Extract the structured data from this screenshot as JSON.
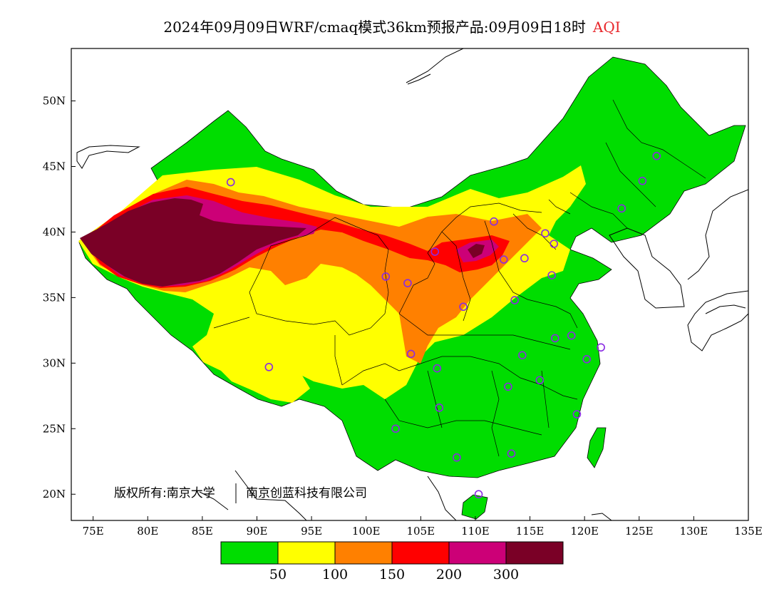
{
  "title": {
    "main": "2024年09月09日WRF/cmaq模式36km预报产品:09月09日18时",
    "product": "AQI",
    "product_color": "#e8262a"
  },
  "axes": {
    "lat_labels": [
      "20N",
      "25N",
      "30N",
      "35N",
      "40N",
      "45N",
      "50N"
    ],
    "lon_labels": [
      "75E",
      "80E",
      "85E",
      "90E",
      "95E",
      "100E",
      "105E",
      "110E",
      "115E",
      "120E",
      "125E",
      "130E",
      "135E"
    ],
    "lon_range": [
      73,
      135
    ],
    "lat_range": [
      18,
      54
    ]
  },
  "copyright": {
    "text_a": "版权所有:南京大学",
    "text_b": "南京创蓝科技有限公司"
  },
  "colorbar": {
    "colors": [
      "#00e400",
      "#ffff00",
      "#ff7e00",
      "#ff0000",
      "#99004c",
      "#7e0023"
    ],
    "bin_colors": [
      "#00dd00",
      "#ffff00",
      "#ff8000",
      "#ff0000",
      "#cc0077",
      "#7a0026"
    ],
    "thresholds": [
      "50",
      "100",
      "150",
      "200",
      "300"
    ]
  },
  "station_color": "#8a2be2",
  "stations": [
    [
      87.6,
      43.8
    ],
    [
      126.6,
      45.8
    ],
    [
      125.3,
      43.9
    ],
    [
      123.4,
      41.8
    ],
    [
      111.7,
      40.8
    ],
    [
      116.4,
      39.9
    ],
    [
      117.2,
      39.1
    ],
    [
      106.3,
      38.5
    ],
    [
      112.6,
      37.9
    ],
    [
      114.5,
      38.0
    ],
    [
      117.0,
      36.7
    ],
    [
      101.8,
      36.6
    ],
    [
      103.8,
      36.1
    ],
    [
      113.6,
      34.8
    ],
    [
      108.9,
      34.3
    ],
    [
      104.1,
      30.7
    ],
    [
      106.5,
      29.6
    ],
    [
      114.3,
      30.6
    ],
    [
      117.3,
      31.9
    ],
    [
      118.8,
      32.1
    ],
    [
      120.2,
      30.3
    ],
    [
      121.5,
      31.2
    ],
    [
      113.0,
      28.2
    ],
    [
      115.9,
      28.7
    ],
    [
      119.3,
      26.1
    ],
    [
      106.7,
      26.6
    ],
    [
      102.7,
      25.0
    ],
    [
      108.3,
      22.8
    ],
    [
      113.3,
      23.1
    ],
    [
      110.3,
      20.0
    ],
    [
      91.1,
      29.7
    ]
  ]
}
